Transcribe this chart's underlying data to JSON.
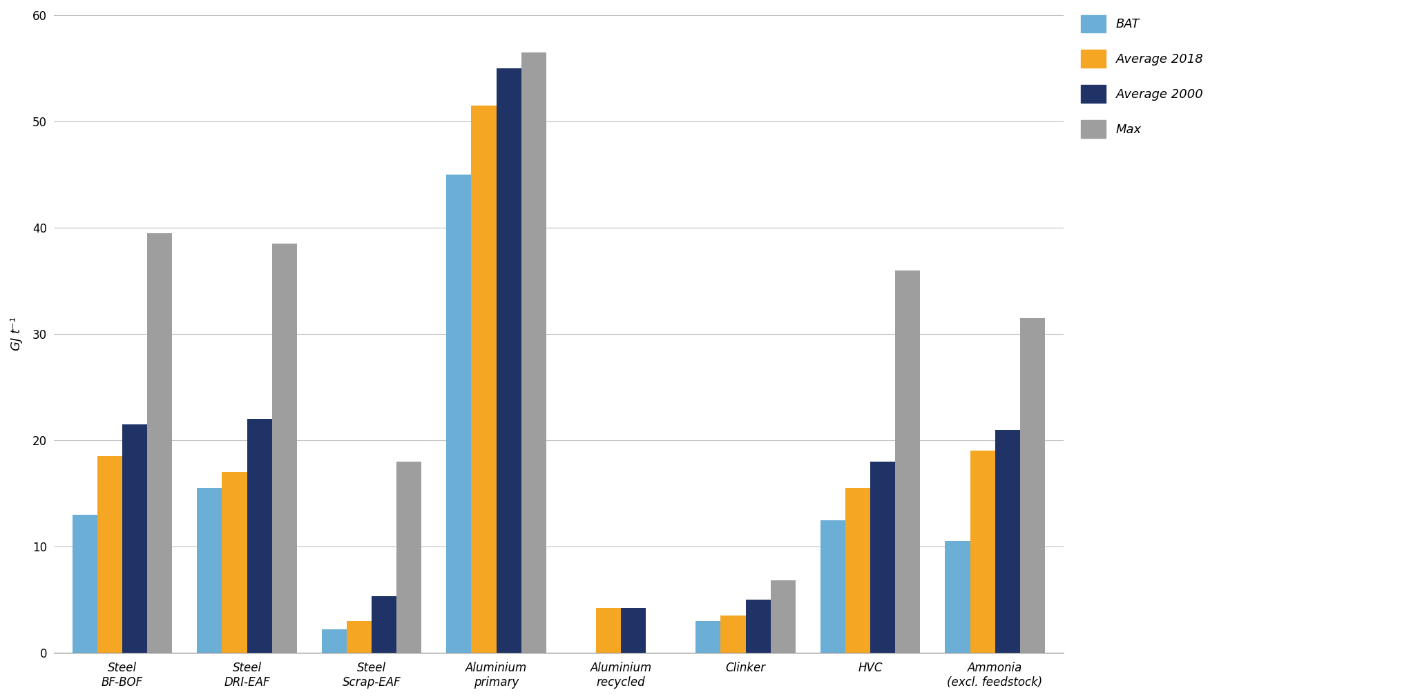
{
  "categories": [
    "Steel\nBF-BOF",
    "Steel\nDRI-EAF",
    "Steel\nScrap-EAF",
    "Aluminium\nprimary",
    "Aluminium\nrecycled",
    "Clinker",
    "HVC",
    "Ammonia\n(excl. feedstock)"
  ],
  "series": {
    "BAT": [
      13.0,
      15.5,
      2.2,
      45.0,
      0.0,
      3.0,
      12.5,
      10.5
    ],
    "Average 2018": [
      18.5,
      17.0,
      3.0,
      51.5,
      4.2,
      3.5,
      15.5,
      19.0
    ],
    "Average 2000": [
      21.5,
      22.0,
      5.3,
      55.0,
      4.2,
      5.0,
      18.0,
      21.0
    ],
    "Max": [
      39.5,
      38.5,
      18.0,
      56.5,
      0.0,
      6.8,
      36.0,
      31.5
    ]
  },
  "colors": {
    "BAT": "#6BAED6",
    "Average 2018": "#F5A623",
    "Average 2000": "#1F3366",
    "Max": "#9E9E9E"
  },
  "ylabel": "GJ t⁻¹",
  "ylim": [
    0,
    60
  ],
  "yticks": [
    0,
    10,
    20,
    30,
    40,
    50,
    60
  ],
  "background_color": "#FFFFFF",
  "legend_labels": [
    "BAT",
    "Average 2018",
    "Average 2000",
    "Max"
  ],
  "bar_width": 0.2,
  "figsize": [
    20.43,
    10.13
  ],
  "dpi": 100
}
